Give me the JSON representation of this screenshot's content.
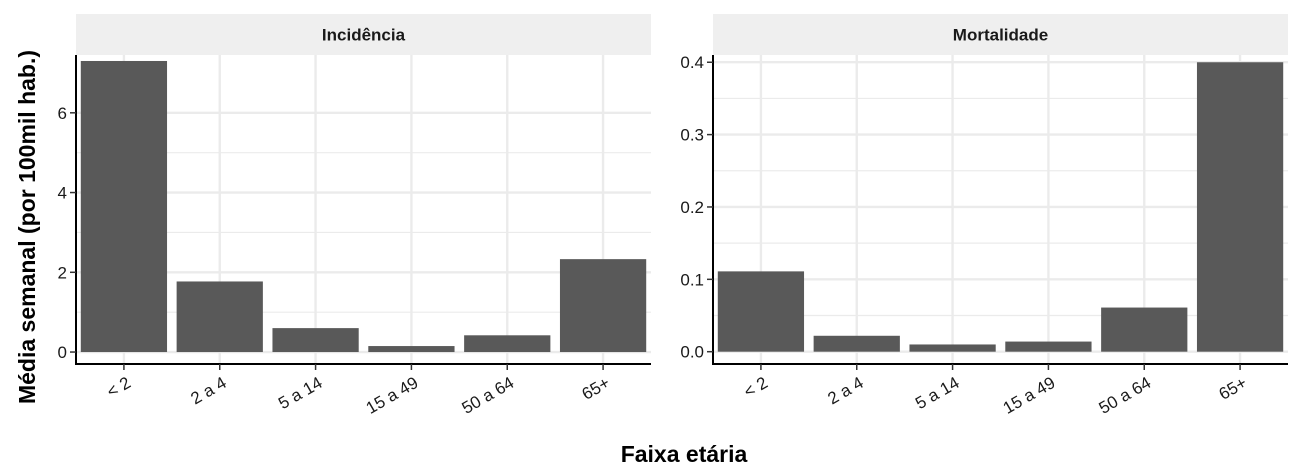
{
  "chart_data": {
    "type": "bar",
    "xlabel": "Faixa etária",
    "ylabel": "Média semanal (por 100mil hab.)",
    "categories": [
      "< 2",
      "2 a 4",
      "5 a 14",
      "15 a 49",
      "50 a 64",
      "65+"
    ],
    "grid": true,
    "bar_color": "#595959",
    "strip_color": "#efefef",
    "grid_color": "#ebebeb",
    "panels": [
      {
        "title": "Incidência",
        "values": [
          7.3,
          1.77,
          0.6,
          0.15,
          0.42,
          2.33
        ],
        "ylim": [
          -0.3,
          7.45
        ],
        "yticks": [
          0,
          2,
          4,
          6
        ],
        "ytick_labels": [
          "0",
          "2",
          "4",
          "6"
        ]
      },
      {
        "title": "Mortalidade",
        "values": [
          0.111,
          0.022,
          0.01,
          0.014,
          0.061,
          0.4
        ],
        "ylim": [
          -0.017,
          0.41
        ],
        "yticks": [
          0,
          0.1,
          0.2,
          0.3,
          0.4
        ],
        "ytick_labels": [
          "0.0",
          "0.1",
          "0.2",
          "0.3",
          "0.4"
        ]
      }
    ]
  }
}
